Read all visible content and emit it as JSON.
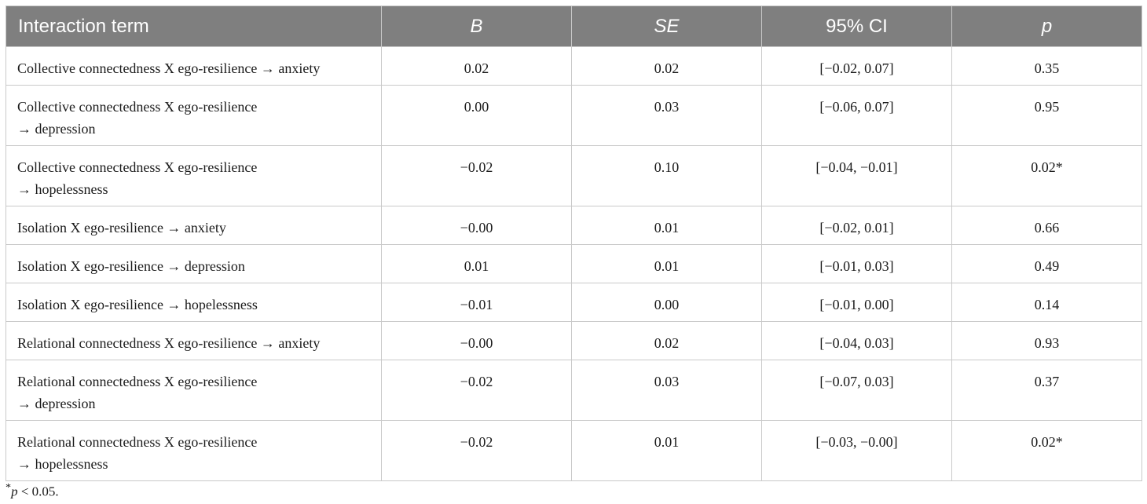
{
  "table": {
    "headers": {
      "term": "Interaction term",
      "b": "B",
      "se": "SE",
      "ci": "95% CI",
      "p": "p"
    },
    "rows": [
      {
        "term_line1": "Collective connectedness X ego-resilience → anxiety",
        "term_line2": "",
        "b": "0.02",
        "se": "0.02",
        "ci": "[−0.02, 0.07]",
        "p": "0.35"
      },
      {
        "term_line1": "Collective connectedness X ego-resilience",
        "term_line2": "→ depression",
        "b": "0.00",
        "se": "0.03",
        "ci": "[−0.06, 0.07]",
        "p": "0.95"
      },
      {
        "term_line1": "Collective connectedness X ego-resilience",
        "term_line2": "→ hopelessness",
        "b": "−0.02",
        "se": "0.10",
        "ci": "[−0.04, −0.01]",
        "p": "0.02*"
      },
      {
        "term_line1": "Isolation X ego-resilience → anxiety",
        "term_line2": "",
        "b": "−0.00",
        "se": "0.01",
        "ci": "[−0.02, 0.01]",
        "p": "0.66"
      },
      {
        "term_line1": "Isolation X ego-resilience → depression",
        "term_line2": "",
        "b": "0.01",
        "se": "0.01",
        "ci": "[−0.01, 0.03]",
        "p": "0.49"
      },
      {
        "term_line1": "Isolation X ego-resilience → hopelessness",
        "term_line2": "",
        "b": "−0.01",
        "se": "0.00",
        "ci": "[−0.01, 0.00]",
        "p": "0.14"
      },
      {
        "term_line1": "Relational connectedness X ego-resilience → anxiety",
        "term_line2": "",
        "b": "−0.00",
        "se": "0.02",
        "ci": "[−0.04, 0.03]",
        "p": "0.93"
      },
      {
        "term_line1": "Relational connectedness X ego-resilience",
        "term_line2": "→ depression",
        "b": "−0.02",
        "se": "0.03",
        "ci": "[−0.07, 0.03]",
        "p": "0.37"
      },
      {
        "term_line1": "Relational connectedness X ego-resilience",
        "term_line2": "→ hopelessness",
        "b": "−0.02",
        "se": "0.01",
        "ci": "[−0.03, −0.00]",
        "p": "0.02*"
      }
    ]
  },
  "footnote": {
    "star": "*",
    "p_symbol": "p",
    "text": " < 0.05."
  },
  "colors": {
    "header_bg": "#7f7f7f",
    "header_text": "#ffffff",
    "border": "#c9c9c9"
  }
}
